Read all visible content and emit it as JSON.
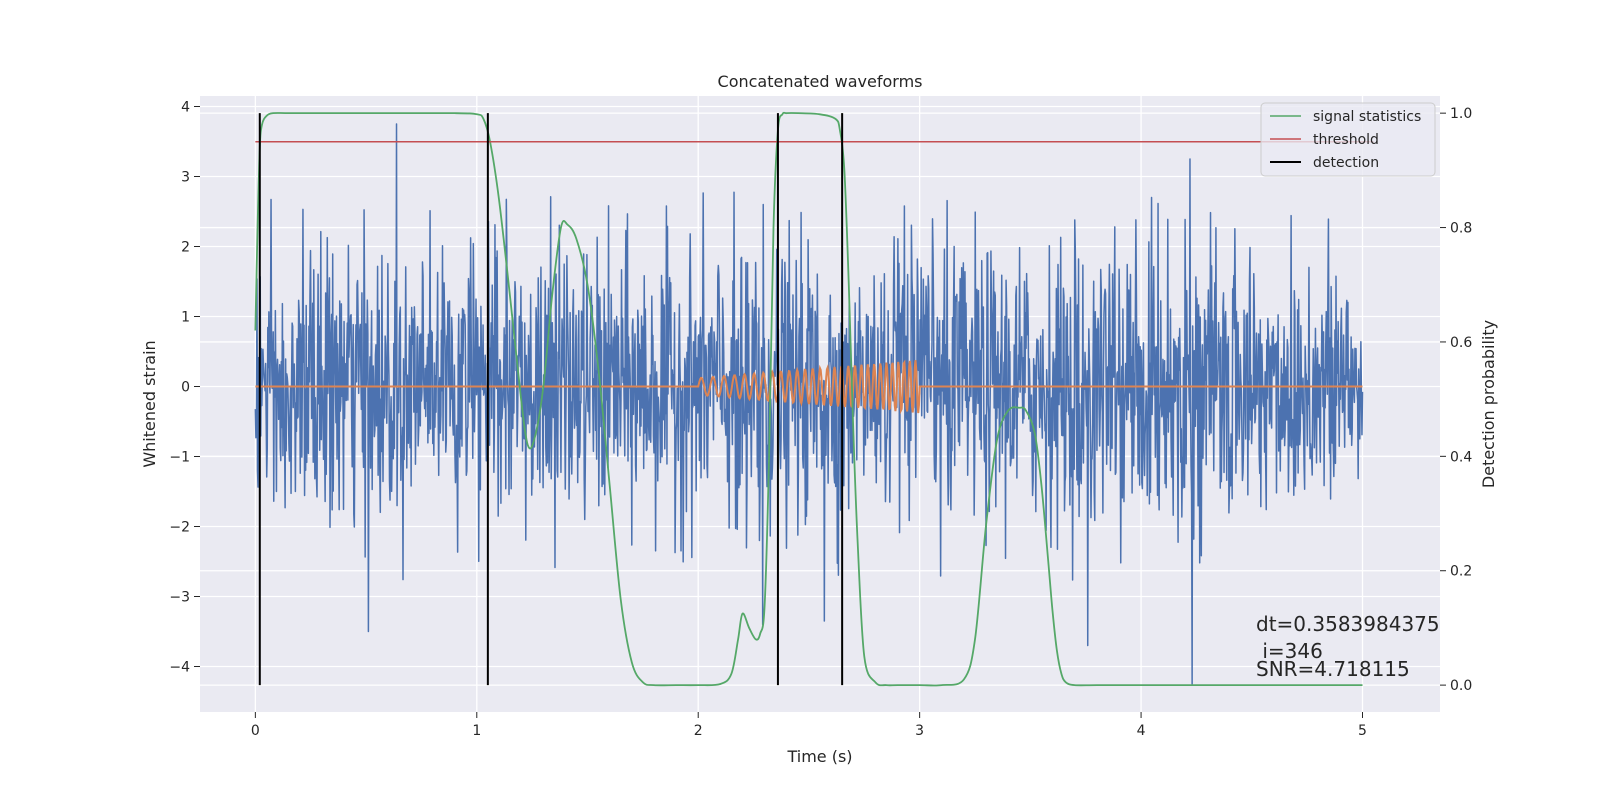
{
  "chart_data": {
    "type": "line",
    "title": "Concatenated waveforms",
    "xlabel": "Time (s)",
    "ylabel": "Whitened strain",
    "y2label": "Detection probability",
    "xlim": [
      -0.25,
      5.35
    ],
    "ylim": [
      -4.65,
      4.15
    ],
    "y2lim": [
      -0.047,
      1.03
    ],
    "xticks": [
      0,
      1,
      2,
      3,
      4,
      5
    ],
    "yticks": [
      -4,
      -3,
      -2,
      -1,
      0,
      1,
      2,
      3,
      4
    ],
    "y2ticks": [
      0.0,
      0.2,
      0.4,
      0.6,
      0.8,
      1.0
    ],
    "grid": true,
    "legend_position": "top-right",
    "colors": {
      "plot_background": "#eaeaf2",
      "grid": "#ffffff",
      "strain": "#4c72b0",
      "template": "#dd8452",
      "signal_statistics": "#55a868",
      "threshold": "#c44e52",
      "detection": "#000000"
    },
    "series": [
      {
        "name": "",
        "axis": "left",
        "description_kind": "noise",
        "x_range": [
          0,
          5
        ],
        "points": 2048,
        "amplitude_typical": 2.2,
        "spikes": [
          {
            "x": 0.638,
            "y": 3.75
          },
          {
            "x": 4.22,
            "y": 3.25
          },
          {
            "x": 4.23,
            "y": -4.25
          },
          {
            "x": 0.51,
            "y": -3.5
          },
          {
            "x": 3.76,
            "y": -3.7
          },
          {
            "x": 2.29,
            "y": -3.4
          },
          {
            "x": 2.57,
            "y": -3.35
          }
        ]
      },
      {
        "name": "",
        "axis": "left",
        "x_range": [
          0,
          5
        ],
        "chirp_start": 2.0,
        "chirp_end": 3.0,
        "chirp_amp_start": 0.12,
        "chirp_amp_end": 0.38,
        "chirp_f0": 18,
        "chirp_f1": 40
      },
      {
        "name": "signal statistics",
        "axis": "right",
        "x": [
          0.0,
          0.01,
          0.02,
          0.03,
          0.05,
          0.08,
          0.15,
          0.3,
          0.6,
          0.9,
          1.0,
          1.03,
          1.06,
          1.1,
          1.15,
          1.2,
          1.23,
          1.26,
          1.3,
          1.34,
          1.38,
          1.41,
          1.45,
          1.5,
          1.55,
          1.6,
          1.65,
          1.7,
          1.75,
          1.8,
          1.9,
          2.0,
          2.1,
          2.15,
          2.18,
          2.2,
          2.23,
          2.26,
          2.28,
          2.3,
          2.32,
          2.34,
          2.36,
          2.38,
          2.4,
          2.45,
          2.55,
          2.62,
          2.64,
          2.66,
          2.68,
          2.7,
          2.72,
          2.75,
          2.8,
          2.85,
          2.9,
          3.0,
          3.1,
          3.2,
          3.25,
          3.3,
          3.35,
          3.4,
          3.45,
          3.48,
          3.52,
          3.55,
          3.58,
          3.6,
          3.62,
          3.64,
          3.66,
          3.7,
          3.8,
          4.0,
          4.5,
          5.0
        ],
        "y": [
          0.62,
          0.8,
          0.94,
          0.98,
          0.995,
          1.0,
          1.0,
          1.0,
          1.0,
          1.0,
          0.998,
          0.99,
          0.95,
          0.85,
          0.68,
          0.5,
          0.42,
          0.43,
          0.52,
          0.68,
          0.8,
          0.805,
          0.78,
          0.7,
          0.55,
          0.35,
          0.15,
          0.04,
          0.005,
          0.0,
          0.0,
          0.0,
          0.002,
          0.02,
          0.08,
          0.125,
          0.1,
          0.08,
          0.09,
          0.14,
          0.4,
          0.8,
          0.97,
          0.998,
          1.0,
          1.0,
          0.998,
          0.99,
          0.97,
          0.9,
          0.7,
          0.45,
          0.25,
          0.05,
          0.005,
          0.0,
          0.0,
          0.0,
          0.0,
          0.01,
          0.08,
          0.28,
          0.43,
          0.48,
          0.485,
          0.48,
          0.44,
          0.35,
          0.22,
          0.13,
          0.06,
          0.02,
          0.005,
          0.0,
          0.0,
          0.0,
          0.0,
          0.0
        ]
      },
      {
        "name": "threshold",
        "axis": "right",
        "x": [
          0,
          5.05
        ],
        "y": [
          0.95,
          0.95
        ]
      }
    ],
    "detections": {
      "name": "detection",
      "x": [
        0.02,
        1.05,
        2.36,
        2.65
      ]
    },
    "annotations": {
      "dt": "dt=0.3583984375",
      "i": " i=346",
      "snr": "SNR=4.718115"
    }
  }
}
